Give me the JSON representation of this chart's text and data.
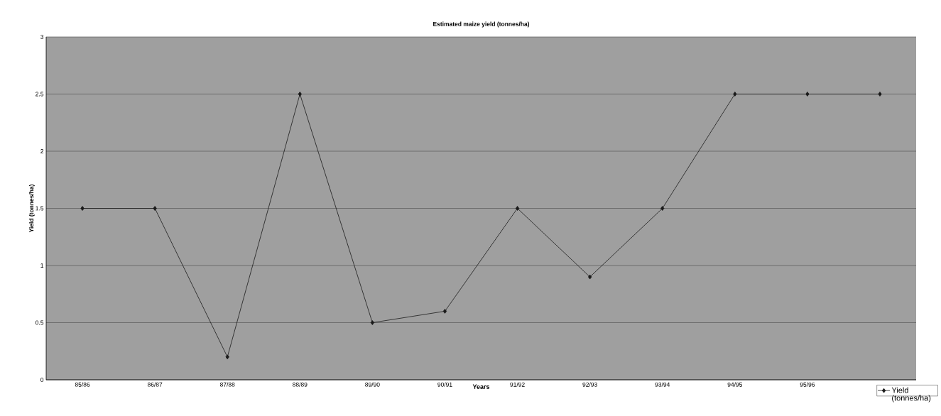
{
  "chart_data": {
    "type": "line",
    "title": "Estimated maize yield (tonnes/ha)",
    "xlabel": "Years",
    "ylabel": "Yield (tonnes/ha)",
    "categories": [
      "85/86",
      "86/87",
      "87/88",
      "88/89",
      "89/90",
      "90/91",
      "91/92",
      "92/93",
      "93/94",
      "94/95",
      "95/96",
      null
    ],
    "series": [
      {
        "name": "Yield (tonnes/ha)",
        "color": "#1a1a1a",
        "values": [
          1.5,
          1.5,
          0.2,
          2.5,
          0.5,
          0.6,
          1.5,
          0.9,
          1.5,
          2.5,
          2.5,
          2.5
        ]
      }
    ],
    "ylim": [
      0,
      3
    ],
    "yticks": [
      0,
      0.5,
      1,
      1.5,
      2,
      2.5,
      3
    ],
    "grid": "y",
    "legend": "bottom right",
    "marker": "diamond",
    "line_style": "solid"
  }
}
